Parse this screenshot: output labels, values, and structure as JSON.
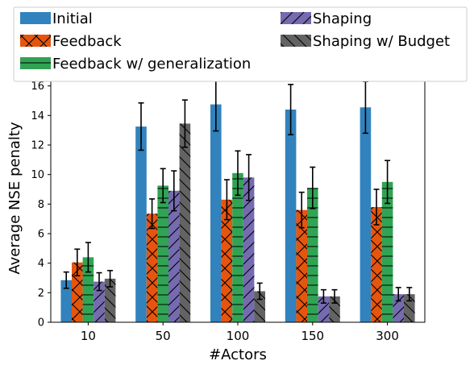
{
  "chart_data": {
    "type": "bar",
    "xlabel": "#Actors",
    "ylabel": "Average NSE penalty",
    "categories": [
      "10",
      "50",
      "100",
      "150",
      "300"
    ],
    "ylim": [
      0,
      16.8
    ],
    "yticks": [
      0,
      2,
      4,
      6,
      8,
      10,
      12,
      14,
      16
    ],
    "legend_position": "top, above plot, two columns",
    "grid": false,
    "error_bars": true,
    "series": [
      {
        "name": "Initial",
        "color": "#3182bd",
        "hatch": "none",
        "values": [
          2.85,
          13.25,
          14.75,
          14.4,
          14.55
        ],
        "errors": [
          0.55,
          1.6,
          1.8,
          1.7,
          1.75
        ]
      },
      {
        "name": "Feedback",
        "color": "#e6550d",
        "hatch": "cross",
        "values": [
          4.05,
          7.35,
          8.3,
          7.6,
          7.8
        ],
        "errors": [
          0.9,
          1.0,
          1.35,
          1.2,
          1.2
        ]
      },
      {
        "name": "Feedback w/ generalization",
        "color": "#31a354",
        "hatch": "horizontal",
        "values": [
          4.4,
          9.25,
          10.1,
          9.1,
          9.5
        ],
        "errors": [
          1.0,
          1.15,
          1.5,
          1.4,
          1.45
        ]
      },
      {
        "name": "Shaping",
        "color": "#756bb1",
        "hatch": "forward-diagonal",
        "values": [
          2.75,
          8.9,
          9.8,
          1.75,
          1.9
        ],
        "errors": [
          0.6,
          1.35,
          1.55,
          0.45,
          0.45
        ]
      },
      {
        "name": "Shaping w/ Budget",
        "color": "#636363",
        "hatch": "back-diagonal",
        "values": [
          2.95,
          13.45,
          2.1,
          1.75,
          1.9
        ],
        "errors": [
          0.55,
          1.6,
          0.55,
          0.45,
          0.45
        ]
      }
    ]
  }
}
